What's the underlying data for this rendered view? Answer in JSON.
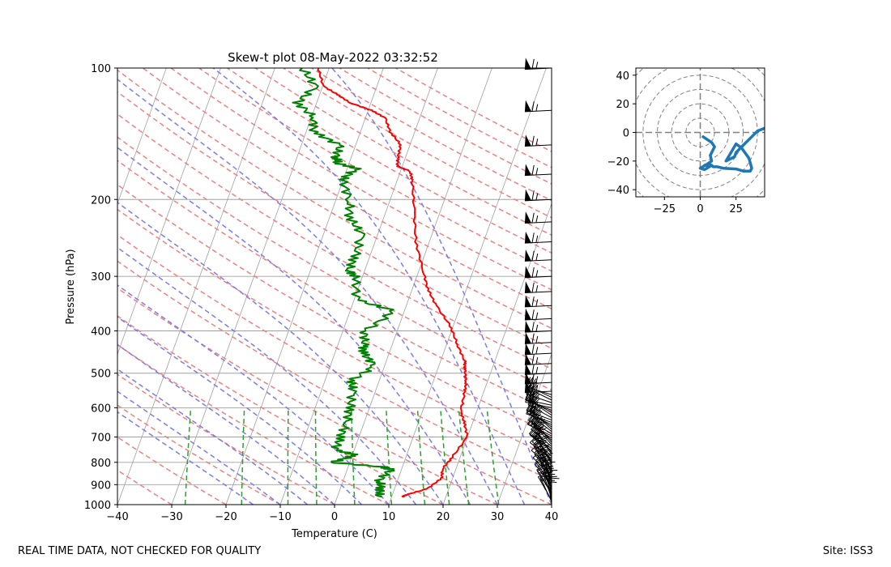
{
  "footer": {
    "left": "REAL TIME DATA, NOT CHECKED FOR QUALITY",
    "right": "Site: ISS3"
  },
  "chart_data": [
    {
      "type": "line",
      "title": "Skew-t plot 08-May-2022 03:32:52",
      "xlabel": "Temperature (C)",
      "ylabel": "Pressure (hPa)",
      "xlim": [
        -40,
        40
      ],
      "ylim": [
        1000,
        100
      ],
      "y_scale": "log",
      "grid": true,
      "x_ticks": [
        -40,
        -30,
        -20,
        -10,
        0,
        10,
        20,
        30,
        40
      ],
      "x_tick_labels": [
        "−40",
        "−30",
        "−20",
        "−10",
        "0",
        "10",
        "20",
        "30",
        "40"
      ],
      "y_ticks": [
        1000,
        900,
        800,
        700,
        600,
        500,
        400,
        300,
        200,
        100
      ],
      "y_tick_labels": [
        "1000",
        "900",
        "800",
        "700",
        "600",
        "500",
        "400",
        "300",
        "200",
        "100"
      ],
      "colors": {
        "temperature": "#ff0000",
        "dewpoint": "#008000",
        "dry_adiabat": "#f08080",
        "moist_adiabat": "#7b7bea",
        "mixing_ratio": "#2ca02c",
        "isotherm": "#a0a0a0",
        "wind_barb": "#000000"
      },
      "series": [
        {
          "role": "temperature",
          "x": [
            12,
            12.5,
            16,
            18,
            17.5,
            18.5,
            20,
            18.5,
            17,
            16.5,
            16,
            15,
            14.5,
            12,
            9.5,
            5.5,
            2.8,
            0.7,
            -2.5,
            -5,
            -7.3,
            -8.3,
            -10.9,
            -11.4,
            -11.7,
            -14.5,
            -16.4,
            -19.4,
            -23.9,
            -26.7,
            -29.9,
            -32
          ],
          "y": [
            960,
            950,
            920,
            870,
            830,
            780,
            700,
            650,
            610,
            550,
            520,
            490,
            470,
            430,
            390,
            350,
            320,
            290,
            250,
            210,
            180,
            172,
            168,
            160,
            150,
            140,
            130,
            125,
            120,
            115,
            110,
            100
          ]
        },
        {
          "role": "dewpoint",
          "x": [
            7.5,
            7.5,
            6.7,
            8,
            6.4,
            -3.3,
            0.7,
            -3.5,
            -3.4,
            -3.1,
            -3.6,
            -4.2,
            -5.1,
            -1.8,
            -4.8,
            -5.2,
            -5.9,
            -1.8,
            -9.4,
            -11.4,
            -13,
            -12.7,
            -13,
            -16.3,
            -17.5,
            -20.2,
            -18.3,
            -22.1,
            -22.8,
            -23,
            -28.7,
            -29.4,
            -33.6,
            -31.3,
            -35
          ],
          "y": [
            960,
            920,
            880,
            830,
            820,
            800,
            770,
            750,
            700,
            650,
            600,
            550,
            520,
            480,
            450,
            430,
            400,
            360,
            340,
            300,
            290,
            270,
            240,
            220,
            200,
            180,
            170,
            165,
            160,
            150,
            140,
            130,
            120,
            110,
            100
          ]
        }
      ]
    },
    {
      "type": "line",
      "title": "",
      "xlabel": "",
      "ylabel": "",
      "xlim": [
        -45,
        45
      ],
      "ylim": [
        -45,
        45
      ],
      "x_ticks": [
        -25,
        0,
        25
      ],
      "x_tick_labels": [
        "−25",
        "0",
        "25"
      ],
      "y_ticks": [
        40,
        20,
        0,
        -20,
        -40
      ],
      "y_tick_labels": [
        "40",
        "20",
        "0",
        "−20",
        "−40"
      ],
      "range_rings": [
        10,
        20,
        30,
        40,
        50,
        60
      ],
      "colors": {
        "trace": "#1f77b4",
        "rings": "#808080"
      },
      "series": [
        {
          "role": "hodograph",
          "x": [
            2,
            8,
            10,
            7,
            8,
            5,
            0,
            3,
            8,
            6,
            3,
            8,
            9,
            12,
            16,
            25,
            30,
            35,
            36,
            34,
            29,
            25,
            18,
            24,
            25,
            32,
            34,
            40,
            45
          ],
          "y": [
            -3,
            -7,
            -10,
            -16,
            -20,
            -22,
            -25,
            -26,
            -23,
            -22,
            -23,
            -23,
            -24,
            -24,
            -25,
            -25.5,
            -27,
            -27,
            -25,
            -18,
            -11,
            -8,
            -20,
            -17,
            -14,
            -7,
            -5,
            1,
            3
          ]
        }
      ]
    }
  ]
}
